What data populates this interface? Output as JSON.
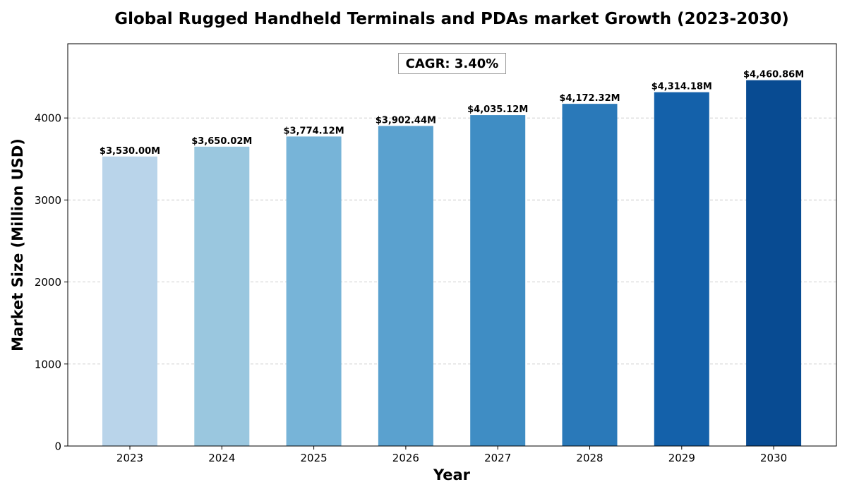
{
  "chart_data": {
    "type": "bar",
    "title": "Global Rugged Handheld Terminals and PDAs market Growth (2023-2030)",
    "xlabel": "Year",
    "ylabel": "Market Size (Million USD)",
    "categories": [
      "2023",
      "2024",
      "2025",
      "2026",
      "2027",
      "2028",
      "2029",
      "2030"
    ],
    "values": [
      3530.0,
      3650.02,
      3774.12,
      3902.44,
      4035.12,
      4172.32,
      4314.18,
      4460.86
    ],
    "data_labels": [
      "$3,530.00M",
      "$3,650.02M",
      "$3,774.12M",
      "$3,902.44M",
      "$4,035.12M",
      "$4,172.32M",
      "$4,314.18M",
      "$4,460.86M"
    ],
    "colors": [
      "#b9d4ea",
      "#9ac7df",
      "#77b4d8",
      "#5aa1cf",
      "#3f8dc4",
      "#2a79b9",
      "#1461aa",
      "#084b92"
    ],
    "ylim": [
      0,
      4905
    ],
    "yticks": [
      0,
      1000,
      2000,
      3000,
      4000
    ],
    "grid": "horizontal dashed",
    "annotation": "CAGR: 3.40%"
  }
}
